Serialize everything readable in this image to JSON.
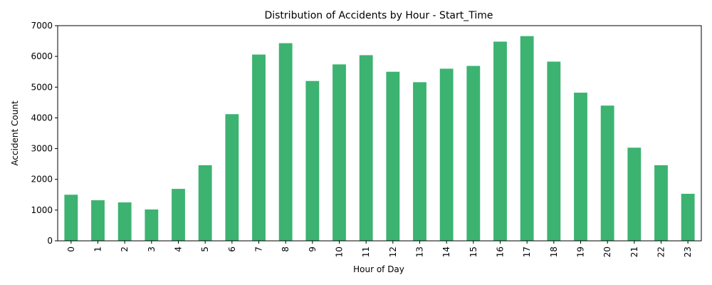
{
  "chart_data": {
    "type": "bar",
    "title": "Distribution of Accidents by Hour - Start_Time",
    "xlabel": "Hour of Day",
    "ylabel": "Accident Count",
    "categories": [
      "0",
      "1",
      "2",
      "3",
      "4",
      "5",
      "6",
      "7",
      "8",
      "9",
      "10",
      "11",
      "12",
      "13",
      "14",
      "15",
      "16",
      "17",
      "18",
      "19",
      "20",
      "21",
      "22",
      "23"
    ],
    "values": [
      1500,
      1320,
      1250,
      1020,
      1690,
      2460,
      4120,
      6060,
      6430,
      5200,
      5740,
      6040,
      5500,
      5160,
      5600,
      5690,
      6480,
      6660,
      5830,
      4820,
      4400,
      3030,
      2460,
      1530
    ],
    "ylim": [
      0,
      7000
    ],
    "yticks": [
      0,
      1000,
      2000,
      3000,
      4000,
      5000,
      6000,
      7000
    ],
    "bar_color": "#3cb371",
    "grid": false,
    "legend": false
  }
}
